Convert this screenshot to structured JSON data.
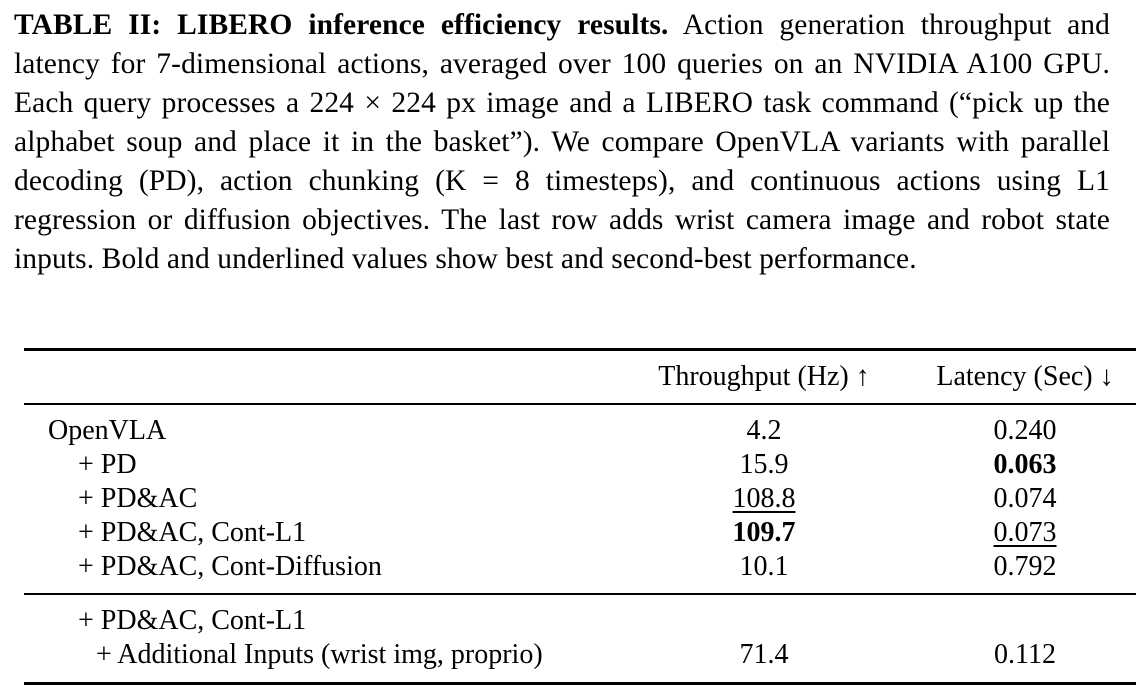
{
  "caption": {
    "label": "TABLE II: LIBERO inference efficiency results.",
    "text": " Action generation throughput and latency for 7-dimensional actions, averaged over 100 queries on an NVIDIA A100 GPU. Each query processes a 224 × 224 px image and a LIBERO task command (“pick up the alphabet soup and place it in the basket”). We compare OpenVLA variants with parallel decoding (PD), action chunking (K = 8 timesteps), and continuous actions using L1 regression or diffusion objectives. The last row adds wrist camera image and robot state inputs. Bold and underlined values show best and second-best performance."
  },
  "table": {
    "headers": {
      "throughput": "Throughput (Hz) ↑",
      "latency": "Latency (Sec) ↓"
    },
    "rows": [
      {
        "method": "OpenVLA",
        "throughput": "4.2",
        "latency": "0.240"
      },
      {
        "method": "+ PD",
        "throughput": "15.9",
        "latency": "0.063"
      },
      {
        "method": "+ PD&AC",
        "throughput": "108.8",
        "latency": "0.074"
      },
      {
        "method": "+ PD&AC, Cont-L1",
        "throughput": "109.7",
        "latency": "0.073"
      },
      {
        "method": "+ PD&AC, Cont-Diffusion",
        "throughput": "10.1",
        "latency": "0.792"
      }
    ],
    "extra_row": {
      "method_line1": "+ PD&AC, Cont-L1",
      "method_line2": "+ Additional Inputs (wrist img, proprio)",
      "throughput": "71.4",
      "latency": "0.112"
    }
  }
}
